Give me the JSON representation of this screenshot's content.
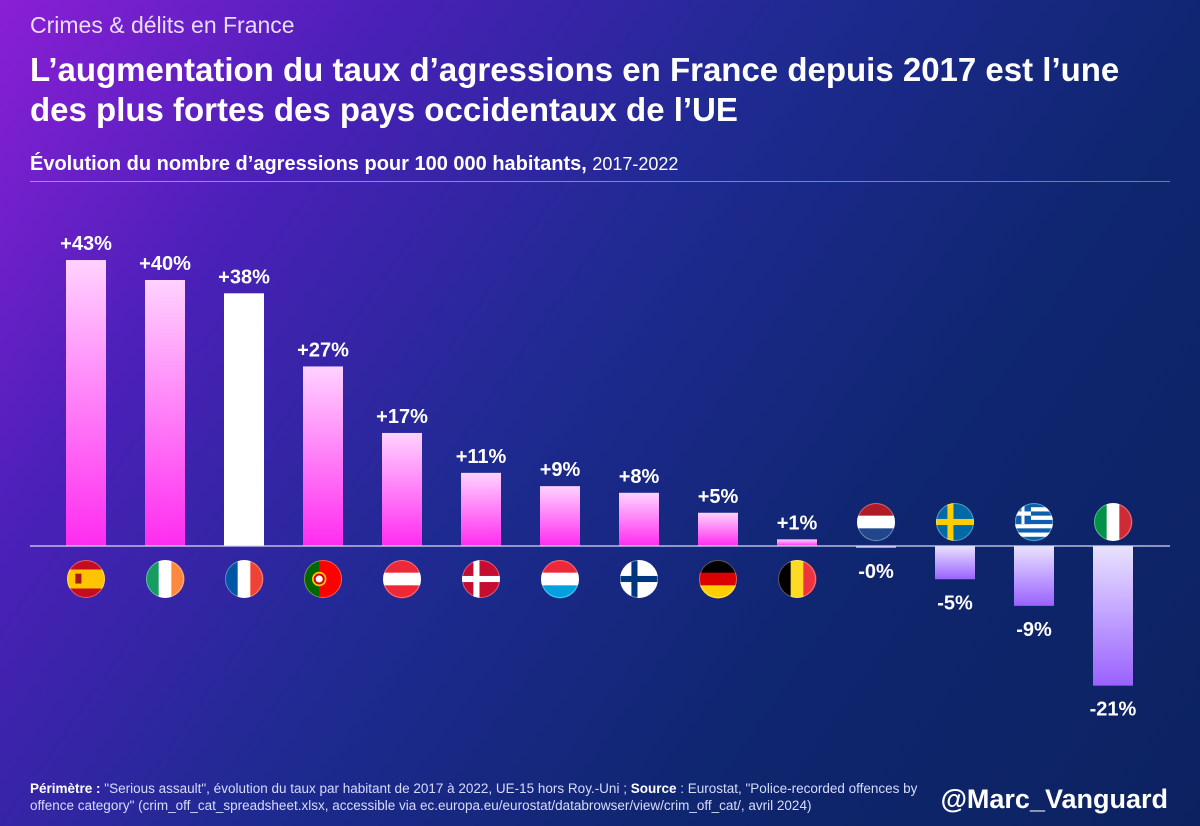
{
  "header": {
    "kicker": "Crimes & délits en France",
    "title": "L’augmentation du taux d’agressions en France depuis 2017 est l’une des plus fortes des pays occidentaux de l’UE",
    "subtitle": "Évolution du nombre d’agressions pour 100 000 habitants,",
    "period": "2017-2022"
  },
  "chart_data": {
    "type": "bar",
    "title": "Évolution du nombre d’agressions pour 100 000 habitants, 2017-2022",
    "ylabel": "",
    "xlabel": "",
    "ylim": [
      -25,
      45
    ],
    "grid": false,
    "categories": [
      "Espagne",
      "Irlande",
      "France",
      "Portugal",
      "Autriche",
      "Danemark",
      "Luxembourg",
      "Finlande",
      "Allemagne",
      "Belgique",
      "Pays-Bas",
      "Suède",
      "Grèce",
      "Italie"
    ],
    "flags": [
      "es",
      "ie",
      "fr",
      "pt",
      "at",
      "dk",
      "lu",
      "fi",
      "de",
      "be",
      "nl",
      "se",
      "gr",
      "it"
    ],
    "values": [
      43,
      40,
      38,
      27,
      17,
      11,
      9,
      8,
      5,
      1,
      -0.3,
      -5,
      -9,
      -21
    ],
    "labels": [
      "+43%",
      "+40%",
      "+38%",
      "+27%",
      "+17%",
      "+11%",
      "+9%",
      "+8%",
      "+5%",
      "+1%",
      "-0%",
      "-5%",
      "-9%",
      "-21%"
    ],
    "highlight": "France",
    "colors": {
      "positive_top": "#ffd2ff",
      "positive_bottom": "#ff2cf0",
      "negative_top": "#e9e2ff",
      "negative_bottom": "#9a62ff",
      "highlight": "#ffffff",
      "axis": "#d9d9ee"
    }
  },
  "footer": {
    "scope_label": "Périmètre :",
    "scope_text": " \"Serious assault\", évolution du taux par habitant de 2017 à 2022, UE-15 hors Roy.-Uni ; ",
    "source_label": "Source",
    "source_text": " : Eurostat, \"Police-recorded offences by offence category\" (crim_off_cat_spreadsheet.xlsx, accessible via ec.europa.eu/eurostat/databrowser/view/crim_off_cat/, avril 2024)",
    "handle": "@Marc_Vanguard"
  }
}
